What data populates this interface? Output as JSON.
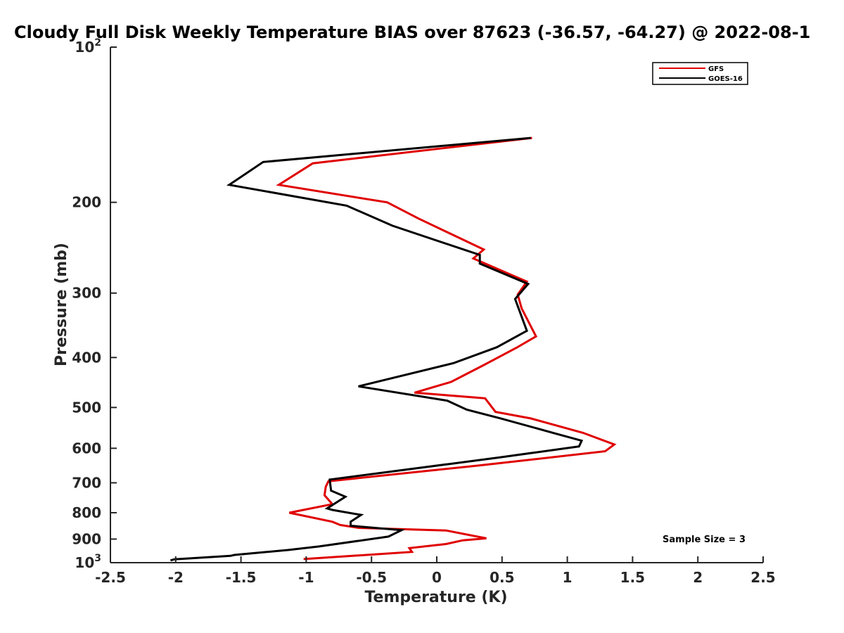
{
  "chart_data": {
    "type": "line",
    "title": "Cloudy Full Disk Weekly Temperature BIAS over 87623 (-36.57, -64.27) @ 2022-08-1",
    "xlabel": "Temperature (K)",
    "ylabel": "Pressure (mb)",
    "xlim": [
      -2.5,
      2.5
    ],
    "ylim": [
      100,
      1000
    ],
    "y_scale": "log",
    "y_reversed": true,
    "x_ticks": [
      "-2.5",
      "-2",
      "-1.5",
      "-1",
      "-0.5",
      "0",
      "0.5",
      "1",
      "1.5",
      "2",
      "2.5"
    ],
    "y_ticks": [
      {
        "value": 100,
        "base": "10",
        "exp": "2"
      },
      {
        "value": 200,
        "label": "200"
      },
      {
        "value": 300,
        "label": "300"
      },
      {
        "value": 400,
        "label": "400"
      },
      {
        "value": 500,
        "label": "500"
      },
      {
        "value": 600,
        "label": "600"
      },
      {
        "value": 700,
        "label": "700"
      },
      {
        "value": 800,
        "label": "800"
      },
      {
        "value": 900,
        "label": "900"
      },
      {
        "value": 1000,
        "base": "10",
        "exp": "3"
      }
    ],
    "legend": "top-right",
    "grid": false,
    "annotation": "Sample Size = 3",
    "series": [
      {
        "name": "GFS",
        "color": "#e00000",
        "points": [
          [
            0.73,
            150
          ],
          [
            -0.95,
            168
          ],
          [
            -1.21,
            185
          ],
          [
            -0.38,
            200
          ],
          [
            -0.14,
            215
          ],
          [
            0.36,
            247
          ],
          [
            0.28,
            257
          ],
          [
            0.69,
            285
          ],
          [
            0.62,
            302
          ],
          [
            0.65,
            321
          ],
          [
            0.76,
            364
          ],
          [
            0.61,
            383
          ],
          [
            0.35,
            415
          ],
          [
            0.11,
            446
          ],
          [
            -0.17,
            468
          ],
          [
            0.37,
            480
          ],
          [
            0.45,
            510
          ],
          [
            0.72,
            525
          ],
          [
            1.12,
            560
          ],
          [
            1.36,
            590
          ],
          [
            1.29,
            608
          ],
          [
            0.32,
            648
          ],
          [
            -0.83,
            695
          ],
          [
            -0.85,
            712
          ],
          [
            -0.86,
            740
          ],
          [
            -0.8,
            770
          ],
          [
            -1.13,
            800
          ],
          [
            -0.8,
            833
          ],
          [
            -0.74,
            845
          ],
          [
            -0.6,
            856
          ],
          [
            0.07,
            866
          ],
          [
            0.38,
            897
          ],
          [
            0.2,
            905
          ],
          [
            0.07,
            920
          ],
          [
            -0.21,
            937
          ],
          [
            -0.19,
            953
          ],
          [
            -1.02,
            984
          ]
        ]
      },
      {
        "name": "GOES-16",
        "color": "#000000",
        "points": [
          [
            0.72,
            150
          ],
          [
            -1.33,
            167
          ],
          [
            -1.59,
            185
          ],
          [
            -0.69,
            203
          ],
          [
            -0.34,
            222
          ],
          [
            0.33,
            253
          ],
          [
            0.33,
            263
          ],
          [
            0.7,
            288
          ],
          [
            0.6,
            308
          ],
          [
            0.69,
            355
          ],
          [
            0.46,
            382
          ],
          [
            0.13,
            410
          ],
          [
            -0.6,
            455
          ],
          [
            0.08,
            485
          ],
          [
            0.23,
            505
          ],
          [
            0.49,
            525
          ],
          [
            0.89,
            560
          ],
          [
            1.11,
            580
          ],
          [
            1.09,
            595
          ],
          [
            0.48,
            625
          ],
          [
            -0.82,
            690
          ],
          [
            -0.81,
            725
          ],
          [
            -0.7,
            745
          ],
          [
            -0.84,
            785
          ],
          [
            -0.8,
            790
          ],
          [
            -0.58,
            808
          ],
          [
            -0.66,
            833
          ],
          [
            -0.66,
            848
          ],
          [
            -0.27,
            865
          ],
          [
            -0.37,
            890
          ],
          [
            -0.9,
            930
          ],
          [
            -1.14,
            945
          ],
          [
            -1.55,
            966
          ],
          [
            -1.58,
            970
          ],
          [
            -2.01,
            985
          ],
          [
            -2.04,
            990
          ]
        ]
      }
    ]
  }
}
